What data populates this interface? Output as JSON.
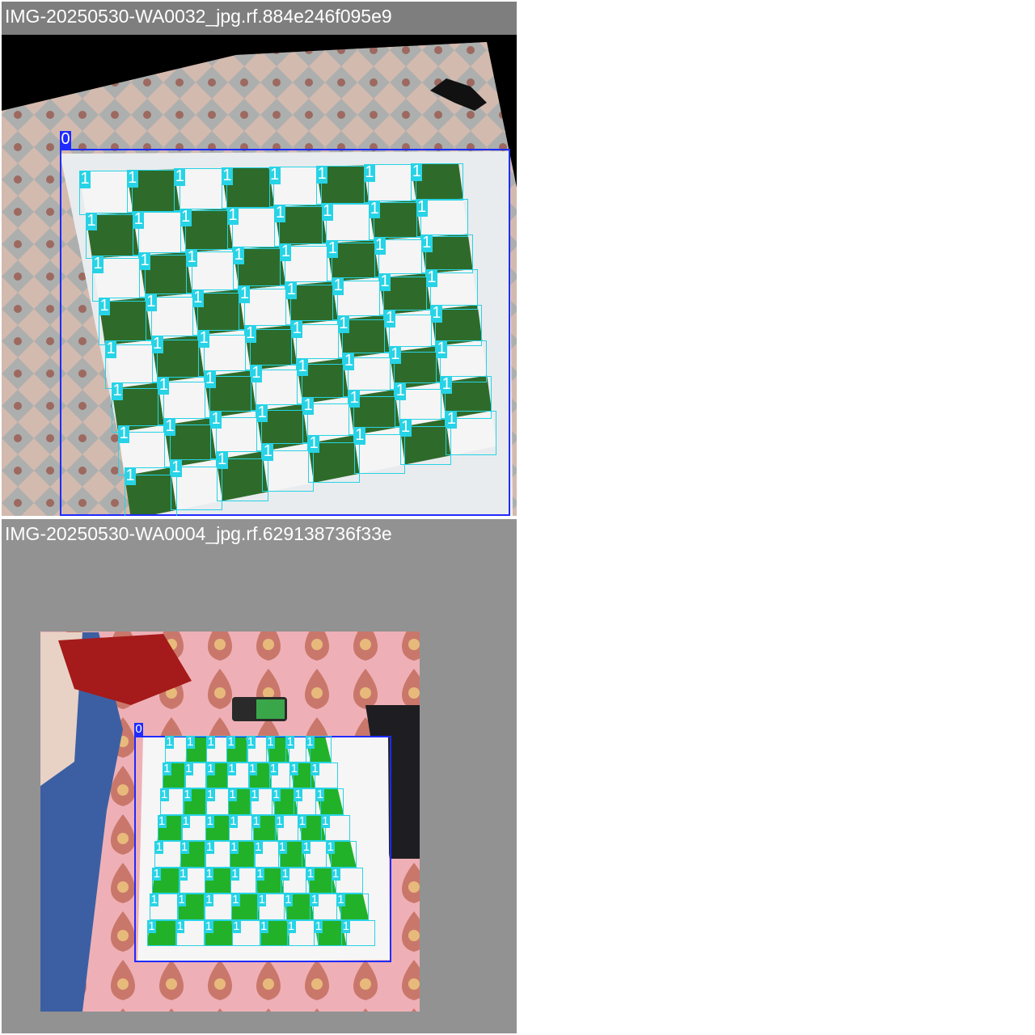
{
  "panels": [
    {
      "title": "IMG-20250530-WA0032_jpg.rf.884e246f095e9",
      "board_label": "0",
      "square_label": "1",
      "board_box_color": "#1f2bff",
      "square_box_color": "#27d3e6",
      "square_count": 64
    },
    {
      "title": "IMG-20250530-WA0004_jpg.rf.629138736f33e",
      "board_label": "0",
      "square_label": "1",
      "board_box_color": "#1f2bff",
      "square_box_color": "#27d3e6",
      "square_count": 64
    }
  ]
}
